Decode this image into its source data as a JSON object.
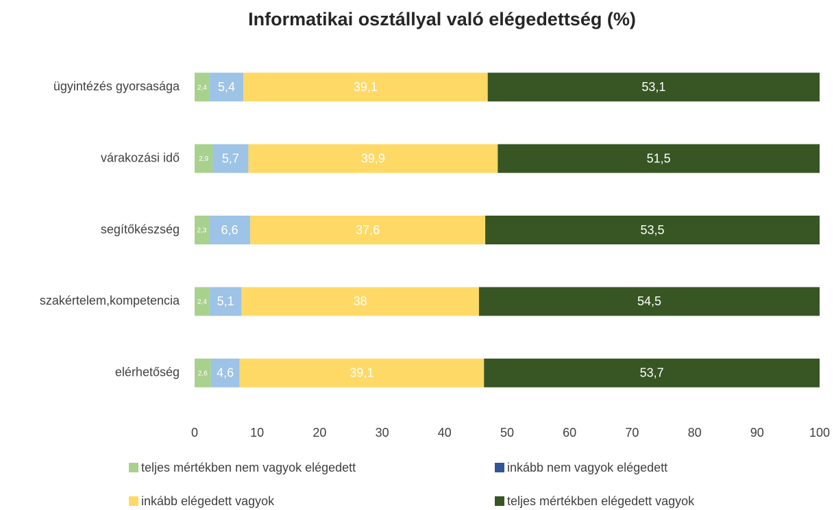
{
  "chart_data": {
    "type": "stacked_barh",
    "title": "Informatikai osztállyal való elégedettség (%)",
    "categories": [
      "ügyintézés gyorsasága",
      "várakozási idő",
      "segítőkészség",
      "szakértelem,kompetencia",
      "elérhetőség"
    ],
    "series": [
      {
        "name": "teljes mértékben nem vagyok elégedett",
        "color": "#a9d18e",
        "values": [
          2.4,
          2.9,
          2.3,
          2.4,
          2.6
        ],
        "value_labels": [
          "2,4",
          "2,9",
          "2,3",
          "2,4",
          "2,6"
        ]
      },
      {
        "name": "inkább nem vagyok elégedett",
        "color": "#2f5597",
        "point_colors": [
          "#9dc3e6",
          "#9dc3e6",
          "#9dc3e6",
          "#9dc3e6",
          "#9dc3e6"
        ],
        "values": [
          5.4,
          5.7,
          6.6,
          5.1,
          4.6
        ],
        "value_labels": [
          "5,4",
          "5,7",
          "6,6",
          "5,1",
          "4,6"
        ]
      },
      {
        "name": "inkább elégedett vagyok",
        "color": "#ffd966",
        "values": [
          39.1,
          39.9,
          37.6,
          38,
          39.1
        ],
        "value_labels": [
          "39,1",
          "39,9",
          "37,6",
          "38",
          "39,1"
        ]
      },
      {
        "name": "teljes mértékben elégedett vagyok",
        "color": "#375623",
        "values": [
          53.1,
          51.5,
          53.5,
          54.5,
          53.7
        ],
        "value_labels": [
          "53,1",
          "51,5",
          "53,5",
          "54,5",
          "53,7"
        ]
      }
    ],
    "xlim": [
      0,
      100
    ],
    "xticks": [
      0,
      10,
      20,
      30,
      40,
      50,
      60,
      70,
      80,
      90,
      100
    ],
    "grid": false,
    "legend": "bottom"
  }
}
